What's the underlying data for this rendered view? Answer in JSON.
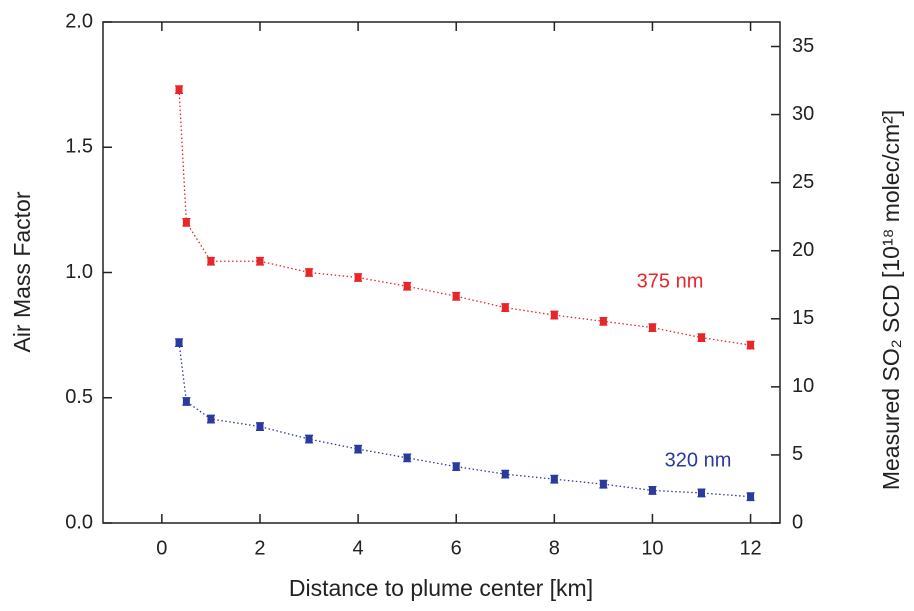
{
  "chart_data": {
    "type": "line",
    "x_label": "Distance to plume center [km]",
    "y_label": "Air Mass Factor",
    "y2_label": "Measured SO₂ SCD [10¹⁸ molec/cm²]",
    "xlim": [
      -1.2,
      12.6
    ],
    "xticks": [
      0,
      2,
      4,
      6,
      8,
      10,
      12
    ],
    "ylim": [
      0,
      2
    ],
    "yticks": [
      {
        "value": 0,
        "label": "0.0"
      },
      {
        "value": 0.5,
        "label": "0.5"
      },
      {
        "value": 1,
        "label": "1.0"
      },
      {
        "value": 1.5,
        "label": "1.5"
      },
      {
        "value": 2,
        "label": "2.0"
      }
    ],
    "y2lim": [
      0,
      36.8
    ],
    "y2ticks": [
      0,
      5,
      10,
      15,
      20,
      25,
      30,
      35
    ],
    "x": [
      0.35,
      0.5,
      1,
      2,
      3,
      4,
      5,
      6,
      7,
      8,
      9,
      10,
      11,
      12
    ],
    "series": [
      {
        "name": "375 nm",
        "color": "#e8262a",
        "values": [
          1.73,
          1.2,
          1.045,
          1.045,
          1.0,
          0.98,
          0.945,
          0.905,
          0.86,
          0.83,
          0.805,
          0.78,
          0.74,
          0.71
        ],
        "errors": [
          0.015,
          0.015,
          0.015,
          0.015,
          0.015,
          0.015,
          0.015,
          0.015,
          0.015,
          0.015,
          0.015,
          0.015,
          0.015,
          0.015
        ]
      },
      {
        "name": "320 nm",
        "color": "#2b3a9e",
        "values": [
          0.72,
          0.485,
          0.415,
          0.385,
          0.335,
          0.295,
          0.26,
          0.225,
          0.195,
          0.175,
          0.155,
          0.13,
          0.12,
          0.105
        ],
        "errors": [
          0.015,
          0.015,
          0.015,
          0.015,
          0.015,
          0.015,
          0.015,
          0.015,
          0.015,
          0.015,
          0.015,
          0.015,
          0.015,
          0.015
        ]
      }
    ]
  }
}
